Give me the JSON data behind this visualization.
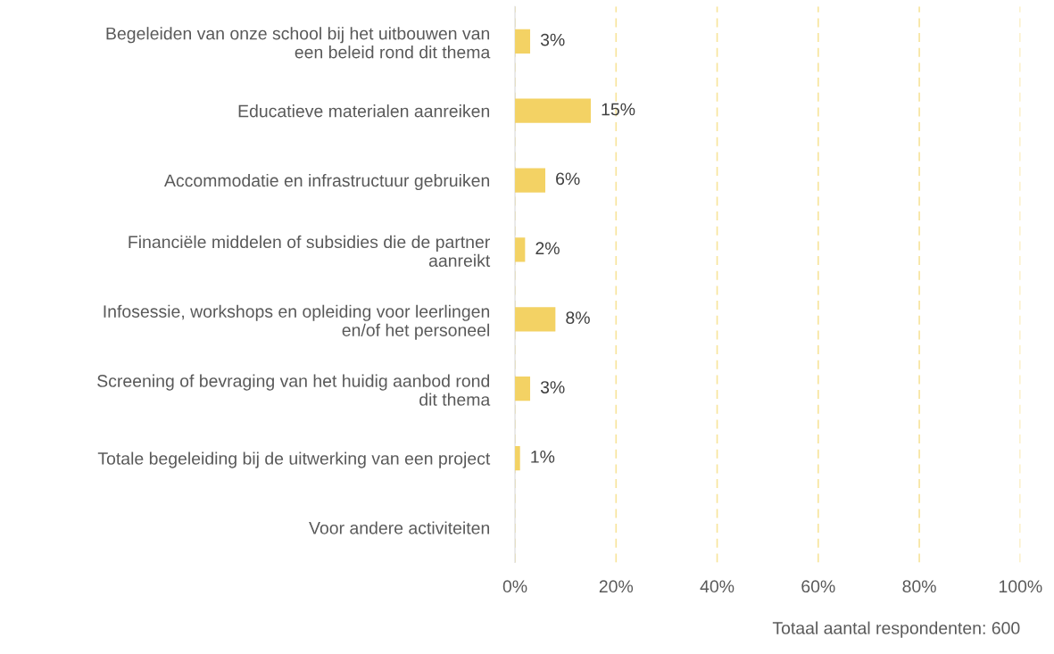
{
  "chart_data": {
    "type": "bar",
    "orientation": "horizontal",
    "categories": [
      "Begeleiden van onze school bij het uitbouwen van\neen beleid rond dit thema",
      "Educatieve materialen aanreiken",
      "Accommodatie en infrastructuur gebruiken",
      "Financiële middelen of subsidies die de partner\naanreikt",
      "Infosessie, workshops en opleiding voor leerlingen\nen/of het personeel",
      "Screening of bevraging van het huidig aanbod rond\ndit thema",
      "Totale begeleiding bij de uitwerking van een project",
      "Voor andere activiteiten"
    ],
    "values": [
      3,
      15,
      6,
      2,
      8,
      3,
      1,
      null
    ],
    "value_labels": [
      "3%",
      "15%",
      "6%",
      "2%",
      "8%",
      "3%",
      "1%",
      null
    ],
    "color": "#f3d264",
    "xlim": [
      0,
      100
    ],
    "xticks": [
      {
        "value": 0,
        "label": "0%"
      },
      {
        "value": 20,
        "label": "20%"
      },
      {
        "value": 40,
        "label": "40%"
      },
      {
        "value": 60,
        "label": "60%"
      },
      {
        "value": 80,
        "label": "80%"
      },
      {
        "value": 100,
        "label": "100%"
      }
    ],
    "grid": "x",
    "annotations": [
      "Totaal aantal respondenten: 600"
    ]
  }
}
